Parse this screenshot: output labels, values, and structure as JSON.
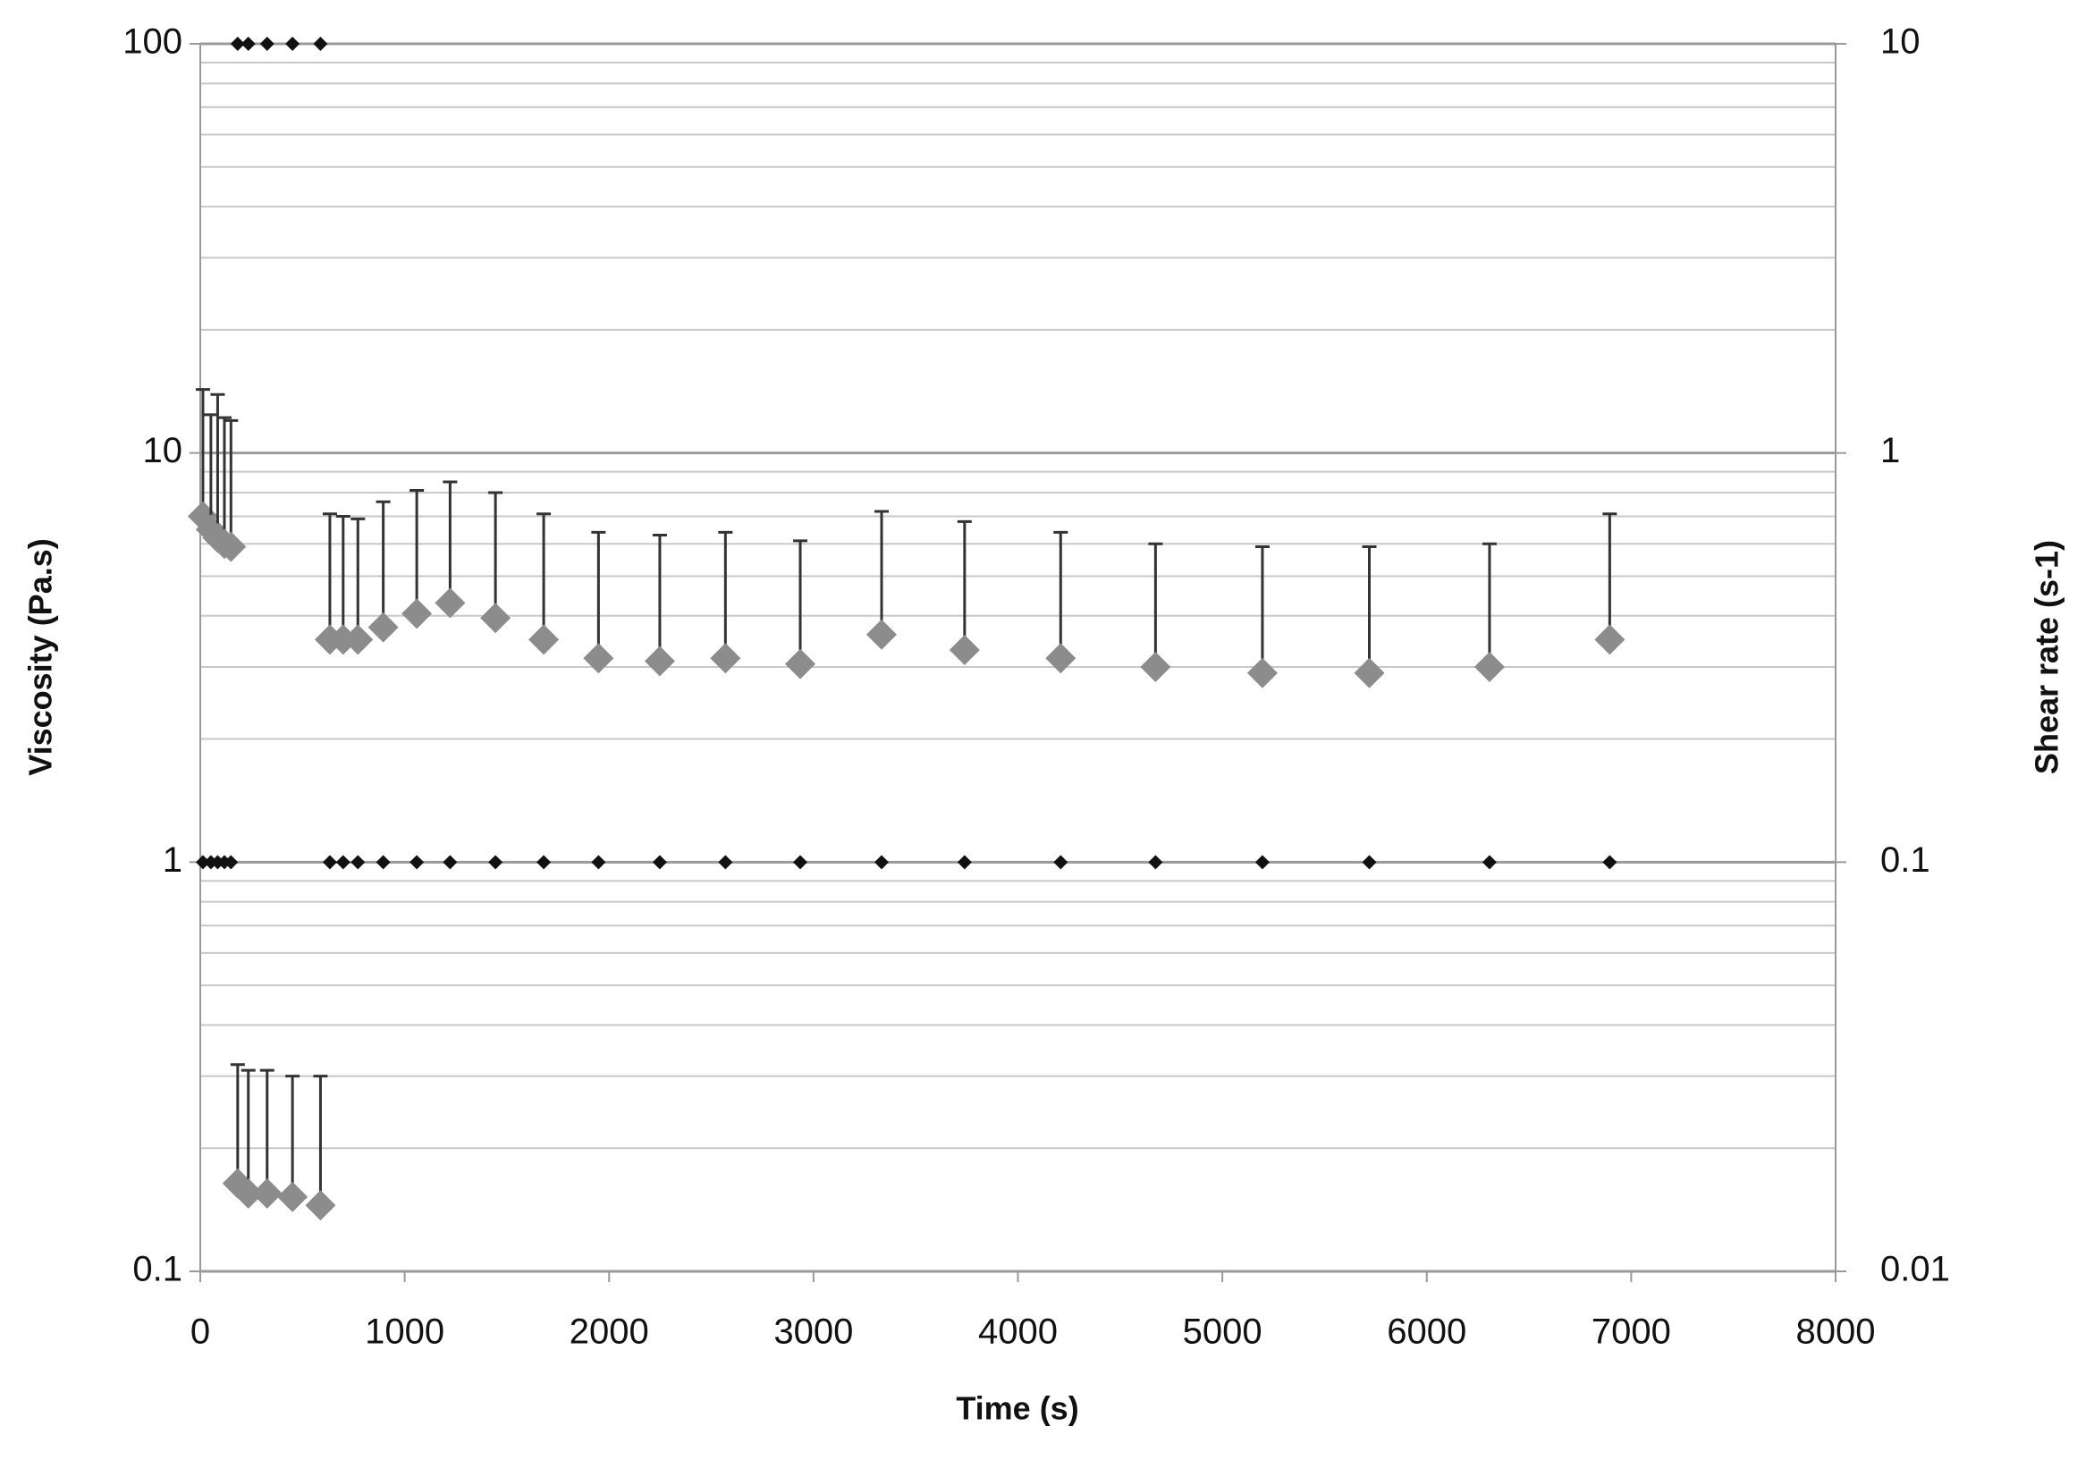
{
  "chart_data": {
    "type": "scatter",
    "x_label": "Time (s)",
    "y_label": "Viscosity (Pa.s)",
    "y2_label": "Shear rate (s-1)",
    "x": [
      13,
      52,
      85,
      118,
      150,
      183,
      235,
      327,
      451,
      588,
      634,
      699,
      771,
      895,
      1059,
      1222,
      1444,
      1680,
      1948,
      2248,
      2569,
      2935,
      3333,
      3739,
      4209,
      4673,
      5196,
      5719,
      6307,
      6895
    ],
    "series": [
      {
        "color": "#8c8c8c",
        "marker": "diamond",
        "values": [
          7.0,
          6.5,
          6.2,
          6.0,
          5.9,
          0.164,
          0.155,
          0.155,
          0.152,
          0.145,
          3.5,
          3.5,
          3.5,
          3.75,
          4.05,
          4.3,
          3.95,
          3.5,
          3.15,
          3.1,
          3.15,
          3.05,
          3.6,
          3.3,
          3.15,
          3.0,
          2.9,
          2.9,
          3.0,
          3.5
        ],
        "errors": [
          7.3,
          5.9,
          7.7,
          6.2,
          6.1,
          0.156,
          0.155,
          0.155,
          0.148,
          0.155,
          3.6,
          3.5,
          3.4,
          3.85,
          4.05,
          4.2,
          4.05,
          3.6,
          3.25,
          3.2,
          3.25,
          3.05,
          3.6,
          3.5,
          3.25,
          3.0,
          3.0,
          3.0,
          3.0,
          3.6
        ]
      },
      {
        "color": "#111111",
        "marker": "small-diamond",
        "axis": "y2",
        "values": [
          0.1,
          0.1,
          0.1,
          0.1,
          0.1,
          10,
          10,
          10,
          10,
          10,
          0.1,
          0.1,
          0.1,
          0.1,
          0.1,
          0.1,
          0.1,
          0.1,
          0.1,
          0.1,
          0.1,
          0.1,
          0.1,
          0.1,
          0.1,
          0.1,
          0.1,
          0.1,
          0.1,
          0.1
        ]
      }
    ],
    "xlim": [
      0,
      8000
    ],
    "xticks": [
      0,
      1000,
      2000,
      3000,
      4000,
      5000,
      6000,
      7000,
      8000
    ],
    "ylim": [
      0.1,
      100
    ],
    "yticks": [
      0.1,
      1,
      10,
      100
    ],
    "y_log": true,
    "y2lim": [
      0.01,
      10
    ],
    "y2ticks": [
      0.01,
      0.1,
      1,
      10
    ],
    "y2_log": true,
    "grid": true,
    "minor_grid": true
  }
}
